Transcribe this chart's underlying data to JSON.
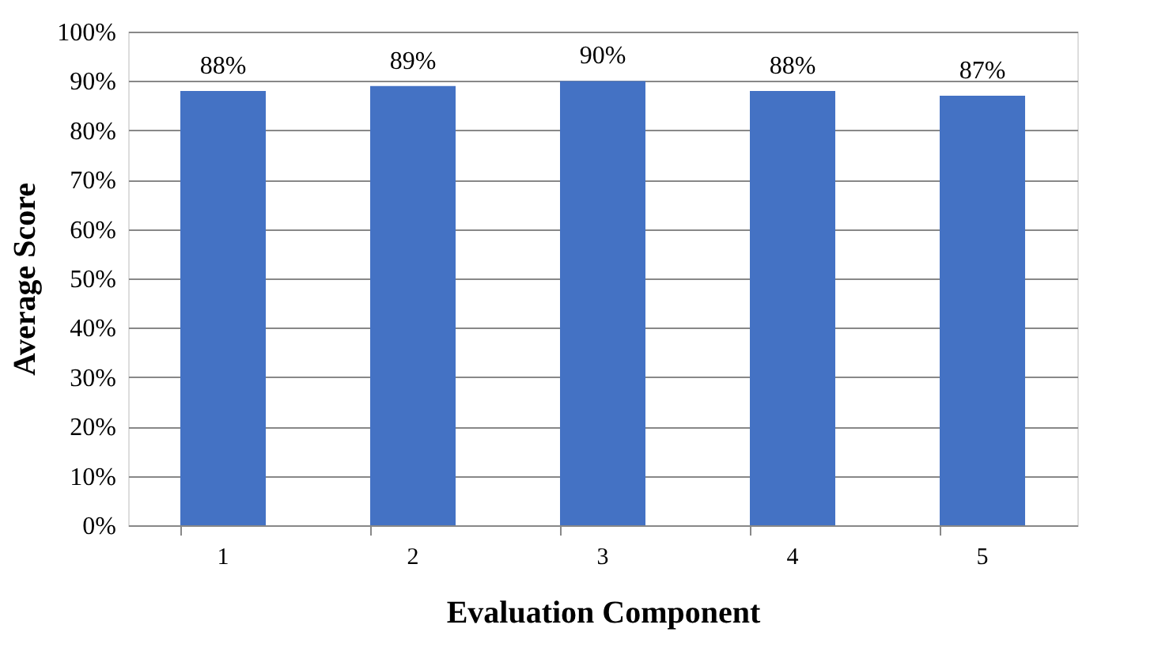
{
  "chart_data": {
    "type": "bar",
    "xlabel": "Evaluation Component",
    "ylabel": "Average Score",
    "categories": [
      "1",
      "2",
      "3",
      "4",
      "5"
    ],
    "values": [
      88,
      89,
      90,
      88,
      87
    ],
    "value_labels": [
      "88%",
      "89%",
      "90%",
      "88%",
      "87%"
    ],
    "color": "#4472c4",
    "ylim": [
      0,
      100
    ],
    "yticks": [
      {
        "value": 0,
        "label": "0%"
      },
      {
        "value": 10,
        "label": "10%"
      },
      {
        "value": 20,
        "label": "20%"
      },
      {
        "value": 30,
        "label": "30%"
      },
      {
        "value": 40,
        "label": "40%"
      },
      {
        "value": 50,
        "label": "50%"
      },
      {
        "value": 60,
        "label": "60%"
      },
      {
        "value": 70,
        "label": "70%"
      },
      {
        "value": 80,
        "label": "80%"
      },
      {
        "value": 90,
        "label": "90%"
      },
      {
        "value": 100,
        "label": "100%"
      }
    ],
    "grid": "y"
  }
}
